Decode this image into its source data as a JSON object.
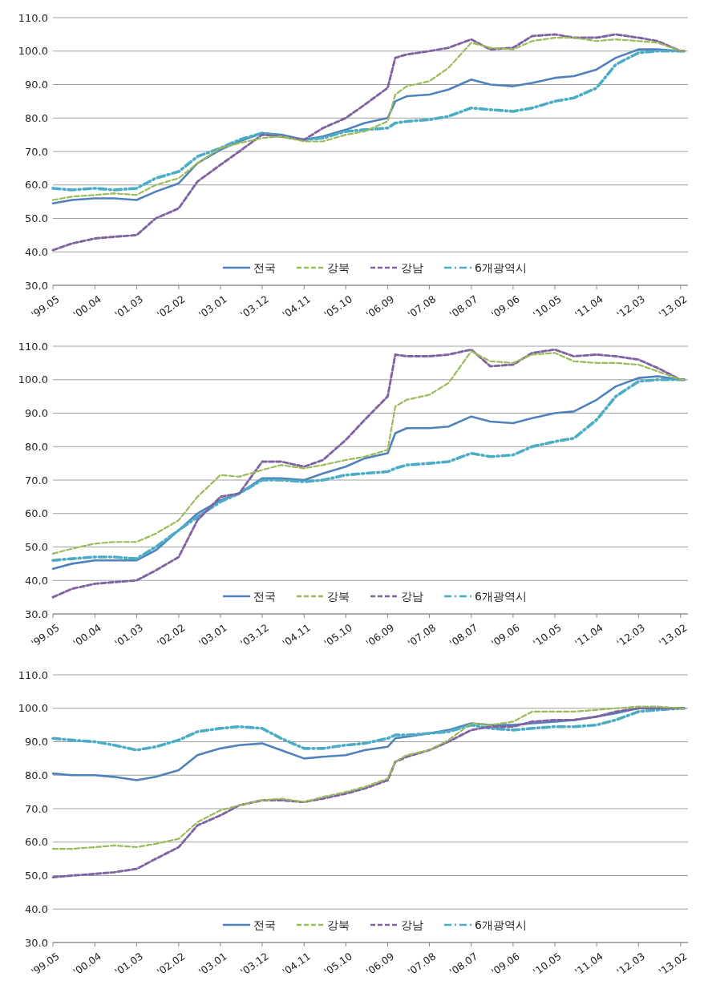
{
  "chart_data": [
    {
      "type": "line",
      "x": [
        "1999-05",
        "1999-10",
        "2000-04",
        "2000-09",
        "2001-03",
        "2001-08",
        "2002-02",
        "2002-07",
        "2003-01",
        "2003-06",
        "2003-12",
        "2004-05",
        "2004-11",
        "2005-04",
        "2005-10",
        "2006-03",
        "2006-09",
        "2006-11",
        "2007-02",
        "2007-08",
        "2008-01",
        "2008-07",
        "2008-12",
        "2009-06",
        "2009-11",
        "2010-05",
        "2010-10",
        "2011-04",
        "2011-09",
        "2012-03",
        "2012-08",
        "2013-02",
        "2013-03"
      ],
      "series": [
        {
          "name": "전국",
          "color": "#4f81bd",
          "line_style": "solid",
          "values": [
            54.5,
            55.5,
            56,
            56,
            55.5,
            58,
            60.5,
            66.5,
            70.5,
            73,
            75.5,
            75,
            73.5,
            74.5,
            76.5,
            78.5,
            80,
            85,
            86.5,
            87,
            88.5,
            91.5,
            90,
            89.5,
            90.5,
            92,
            92.5,
            94.5,
            98,
            100.5,
            100.5,
            100,
            100
          ]
        },
        {
          "name": "강북",
          "color": "#9bbb59",
          "line_style": "dashed",
          "values": [
            55.5,
            56.5,
            57,
            57.5,
            57,
            60,
            62,
            66.5,
            71,
            72.5,
            74,
            74.5,
            73,
            73,
            75,
            76,
            79,
            87,
            89.5,
            91,
            95,
            102.5,
            101,
            100.5,
            103,
            104,
            104,
            103,
            103.5,
            103,
            102.5,
            100,
            100
          ]
        },
        {
          "name": "강남",
          "color": "#8064a2",
          "line_style": "dashed",
          "values": [
            40.5,
            42.5,
            44,
            44.5,
            45,
            50,
            53,
            61,
            66,
            70,
            75,
            74.5,
            73.5,
            77,
            80,
            84,
            89,
            98,
            99,
            100,
            101,
            103.5,
            100.5,
            101,
            104.5,
            105,
            104,
            104,
            105,
            104,
            103,
            100,
            100
          ]
        },
        {
          "name": "6개광역시",
          "color": "#4bacc6",
          "line_style": "dashdot",
          "values": [
            59,
            58.5,
            59,
            58.5,
            59,
            62,
            64,
            68.5,
            71,
            73.5,
            75.5,
            74.5,
            73.5,
            74,
            76,
            76.5,
            77,
            78.5,
            79,
            79.5,
            80.5,
            83,
            82.5,
            82,
            83,
            85,
            86,
            89,
            96,
            99.5,
            100,
            100,
            100
          ]
        }
      ],
      "xlim": [
        "1999-05",
        "2013-04"
      ],
      "xticks": [
        {
          "value": "1999-05",
          "label": "'99.05"
        },
        {
          "value": "2000-04",
          "label": "'00.04"
        },
        {
          "value": "2001-03",
          "label": "'01.03"
        },
        {
          "value": "2002-02",
          "label": "'02.02"
        },
        {
          "value": "2003-01",
          "label": "'03.01"
        },
        {
          "value": "2003-12",
          "label": "'03.12"
        },
        {
          "value": "2004-11",
          "label": "'04.11"
        },
        {
          "value": "2005-10",
          "label": "'05.10"
        },
        {
          "value": "2006-09",
          "label": "'06.09"
        },
        {
          "value": "2007-08",
          "label": "'07.08"
        },
        {
          "value": "2008-07",
          "label": "'08.07"
        },
        {
          "value": "2009-06",
          "label": "'09.06"
        },
        {
          "value": "2010-05",
          "label": "'10.05"
        },
        {
          "value": "2011-04",
          "label": "'11.04"
        },
        {
          "value": "2012-03",
          "label": "'12.03"
        },
        {
          "value": "2013-02",
          "label": "'13.02"
        }
      ],
      "ylim": [
        30,
        110
      ],
      "yticks": [
        {
          "value": 30,
          "label": "30.0"
        },
        {
          "value": 40,
          "label": "40.0"
        },
        {
          "value": 50,
          "label": "50.0"
        },
        {
          "value": 60,
          "label": "60.0"
        },
        {
          "value": 70,
          "label": "70.0"
        },
        {
          "value": 80,
          "label": "80.0"
        },
        {
          "value": 90,
          "label": "90.0"
        },
        {
          "value": 100,
          "label": "100.0"
        },
        {
          "value": 110,
          "label": "110.0"
        }
      ],
      "grid": "y",
      "legend": "bottom",
      "marker": "none"
    },
    {
      "type": "line",
      "x": [
        "1999-05",
        "1999-10",
        "2000-04",
        "2000-09",
        "2001-03",
        "2001-08",
        "2002-02",
        "2002-07",
        "2003-01",
        "2003-06",
        "2003-12",
        "2004-05",
        "2004-11",
        "2005-04",
        "2005-10",
        "2006-03",
        "2006-09",
        "2006-11",
        "2007-02",
        "2007-08",
        "2008-01",
        "2008-07",
        "2008-12",
        "2009-06",
        "2009-11",
        "2010-05",
        "2010-10",
        "2011-04",
        "2011-09",
        "2012-03",
        "2012-08",
        "2013-02",
        "2013-03"
      ],
      "series": [
        {
          "name": "전국",
          "color": "#4f81bd",
          "line_style": "solid",
          "values": [
            43.5,
            45,
            46,
            46,
            46,
            49,
            55,
            60,
            64,
            66,
            70.5,
            70.5,
            70,
            72,
            74,
            76.5,
            78,
            84,
            85.5,
            85.5,
            86,
            89,
            87.5,
            87,
            88.5,
            90,
            90.5,
            94,
            98,
            100.5,
            101,
            100,
            100
          ]
        },
        {
          "name": "강북",
          "color": "#9bbb59",
          "line_style": "dashed",
          "values": [
            48,
            49.5,
            51,
            51.5,
            51.5,
            54,
            58,
            65,
            71.5,
            71,
            73,
            74.5,
            73.5,
            74.5,
            76,
            77,
            79,
            92,
            94,
            95.5,
            99,
            108.5,
            105.5,
            105,
            107.5,
            108,
            105.5,
            105,
            105,
            104.5,
            102.5,
            100,
            100
          ]
        },
        {
          "name": "강남",
          "color": "#8064a2",
          "line_style": "dashed",
          "values": [
            35,
            37.5,
            39,
            39.5,
            40,
            43,
            47,
            58,
            65,
            66,
            75.5,
            75.5,
            74,
            76,
            82,
            88,
            95,
            107.5,
            107,
            107,
            107.5,
            109,
            104,
            104.5,
            108,
            109,
            107,
            107.5,
            107,
            106,
            103.5,
            100,
            100
          ]
        },
        {
          "name": "6개광역시",
          "color": "#4bacc6",
          "line_style": "dashdot",
          "values": [
            46,
            46.5,
            47,
            47,
            46.5,
            50,
            55,
            59,
            63.5,
            66,
            70,
            70,
            69.5,
            70,
            71.5,
            72,
            72.5,
            73.5,
            74.5,
            75,
            75.5,
            78,
            77,
            77.5,
            80,
            81.5,
            82.5,
            88,
            95,
            99.5,
            100,
            100,
            100
          ]
        }
      ],
      "xlim": [
        "1999-05",
        "2013-04"
      ],
      "xticks": [
        {
          "value": "1999-05",
          "label": "'99.05"
        },
        {
          "value": "2000-04",
          "label": "'00.04"
        },
        {
          "value": "2001-03",
          "label": "'01.03"
        },
        {
          "value": "2002-02",
          "label": "'02.02"
        },
        {
          "value": "2003-01",
          "label": "'03.01"
        },
        {
          "value": "2003-12",
          "label": "'03.12"
        },
        {
          "value": "2004-11",
          "label": "'04.11"
        },
        {
          "value": "2005-10",
          "label": "'05.10"
        },
        {
          "value": "2006-09",
          "label": "'06.09"
        },
        {
          "value": "2007-08",
          "label": "'07.08"
        },
        {
          "value": "2008-07",
          "label": "'08.07"
        },
        {
          "value": "2009-06",
          "label": "'09.06"
        },
        {
          "value": "2010-05",
          "label": "'10.05"
        },
        {
          "value": "2011-04",
          "label": "'11.04"
        },
        {
          "value": "2012-03",
          "label": "'12.03"
        },
        {
          "value": "2013-02",
          "label": "'13.02"
        }
      ],
      "ylim": [
        30,
        110
      ],
      "yticks": [
        {
          "value": 30,
          "label": "30.0"
        },
        {
          "value": 40,
          "label": "40.0"
        },
        {
          "value": 50,
          "label": "50.0"
        },
        {
          "value": 60,
          "label": "60.0"
        },
        {
          "value": 70,
          "label": "70.0"
        },
        {
          "value": 80,
          "label": "80.0"
        },
        {
          "value": 90,
          "label": "90.0"
        },
        {
          "value": 100,
          "label": "100.0"
        },
        {
          "value": 110,
          "label": "110.0"
        }
      ],
      "grid": "y",
      "legend": "bottom",
      "marker": "none"
    },
    {
      "type": "line",
      "x": [
        "1999-05",
        "1999-10",
        "2000-04",
        "2000-09",
        "2001-03",
        "2001-08",
        "2002-02",
        "2002-07",
        "2003-01",
        "2003-06",
        "2003-12",
        "2004-05",
        "2004-11",
        "2005-04",
        "2005-10",
        "2006-03",
        "2006-09",
        "2006-11",
        "2007-02",
        "2007-08",
        "2008-01",
        "2008-07",
        "2008-12",
        "2009-06",
        "2009-11",
        "2010-05",
        "2010-10",
        "2011-04",
        "2011-09",
        "2012-03",
        "2012-08",
        "2013-02",
        "2013-03"
      ],
      "series": [
        {
          "name": "전국",
          "color": "#4f81bd",
          "line_style": "solid",
          "values": [
            80.5,
            80,
            80,
            79.5,
            78.5,
            79.5,
            81.5,
            86,
            88,
            89,
            89.5,
            87.5,
            85,
            85.5,
            86,
            87.5,
            88.5,
            91,
            91.5,
            92.5,
            93.5,
            95.5,
            95,
            95,
            95.5,
            96,
            96.5,
            97.5,
            98.5,
            100,
            100,
            100,
            100
          ]
        },
        {
          "name": "강북",
          "color": "#9bbb59",
          "line_style": "dashed",
          "values": [
            58,
            58,
            58.5,
            59,
            58.5,
            59.5,
            61,
            66,
            69.5,
            71,
            72.5,
            73,
            72,
            73.5,
            75,
            76.5,
            79,
            84,
            86,
            87.5,
            90.5,
            95.5,
            95,
            96,
            99,
            99,
            99,
            99.5,
            100,
            100.5,
            100.5,
            100,
            100
          ]
        },
        {
          "name": "강남",
          "color": "#8064a2",
          "line_style": "dashed",
          "values": [
            49.5,
            50,
            50.5,
            51,
            52,
            55,
            58.5,
            65,
            68,
            71,
            72.5,
            72.5,
            72,
            73,
            74.5,
            76,
            78.5,
            84,
            85.5,
            87.5,
            90,
            93.5,
            94.5,
            94.5,
            96,
            96.5,
            96.5,
            97.5,
            99,
            100,
            100,
            100,
            100
          ]
        },
        {
          "name": "6개광역시",
          "color": "#4bacc6",
          "line_style": "dashdot",
          "values": [
            91,
            90.5,
            90,
            89,
            87.5,
            88.5,
            90.5,
            93,
            94,
            94.5,
            94,
            91,
            88,
            88,
            89,
            89.5,
            91,
            92,
            92,
            92.5,
            93,
            95,
            94,
            93.5,
            94,
            94.5,
            94.5,
            95,
            96.5,
            99,
            99.5,
            100,
            100
          ]
        }
      ],
      "xlim": [
        "1999-05",
        "2013-04"
      ],
      "xticks": [
        {
          "value": "1999-05",
          "label": "'99.05"
        },
        {
          "value": "2000-04",
          "label": "'00.04"
        },
        {
          "value": "2001-03",
          "label": "'01.03"
        },
        {
          "value": "2002-02",
          "label": "'02.02"
        },
        {
          "value": "2003-01",
          "label": "'03.01"
        },
        {
          "value": "2003-12",
          "label": "'03.12"
        },
        {
          "value": "2004-11",
          "label": "'04.11"
        },
        {
          "value": "2005-10",
          "label": "'05.10"
        },
        {
          "value": "2006-09",
          "label": "'06.09"
        },
        {
          "value": "2007-08",
          "label": "'07.08"
        },
        {
          "value": "2008-07",
          "label": "'08.07"
        },
        {
          "value": "2009-06",
          "label": "'09.06"
        },
        {
          "value": "2010-05",
          "label": "'10.05"
        },
        {
          "value": "2011-04",
          "label": "'11.04"
        },
        {
          "value": "2012-03",
          "label": "'12.03"
        },
        {
          "value": "2013-02",
          "label": "'13.02"
        }
      ],
      "ylim": [
        30,
        110
      ],
      "yticks": [
        {
          "value": 30,
          "label": "30.0"
        },
        {
          "value": 40,
          "label": "40.0"
        },
        {
          "value": 50,
          "label": "50.0"
        },
        {
          "value": 60,
          "label": "60.0"
        },
        {
          "value": 70,
          "label": "70.0"
        },
        {
          "value": 80,
          "label": "80.0"
        },
        {
          "value": 90,
          "label": "90.0"
        },
        {
          "value": 100,
          "label": "100.0"
        },
        {
          "value": 110,
          "label": "110.0"
        }
      ],
      "grid": "y",
      "legend": "bottom",
      "marker": "none"
    }
  ]
}
